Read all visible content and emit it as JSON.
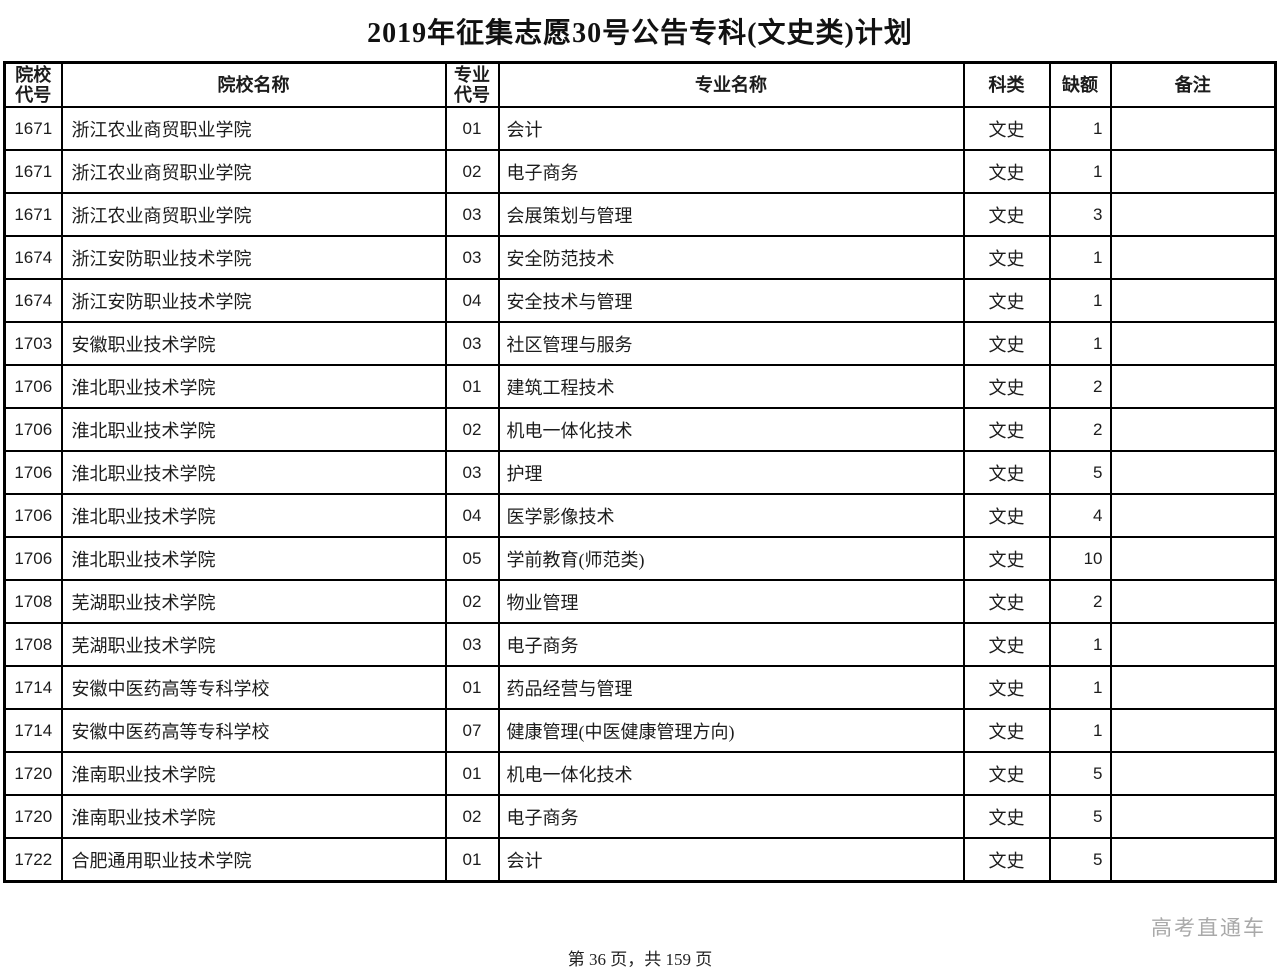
{
  "title": "2019年征集志愿30号公告专科(文史类)计划",
  "table": {
    "columns": [
      {
        "key": "college_code",
        "label": "院校代号"
      },
      {
        "key": "college_name",
        "label": "院校名称"
      },
      {
        "key": "major_code",
        "label": "专业代号"
      },
      {
        "key": "major_name",
        "label": "专业名称"
      },
      {
        "key": "category",
        "label": "科类"
      },
      {
        "key": "vacancy",
        "label": "缺额"
      },
      {
        "key": "remark",
        "label": "备注"
      }
    ],
    "rows": [
      [
        "1671",
        "浙江农业商贸职业学院",
        "01",
        "会计",
        "文史",
        "1",
        ""
      ],
      [
        "1671",
        "浙江农业商贸职业学院",
        "02",
        "电子商务",
        "文史",
        "1",
        ""
      ],
      [
        "1671",
        "浙江农业商贸职业学院",
        "03",
        "会展策划与管理",
        "文史",
        "3",
        ""
      ],
      [
        "1674",
        "浙江安防职业技术学院",
        "03",
        "安全防范技术",
        "文史",
        "1",
        ""
      ],
      [
        "1674",
        "浙江安防职业技术学院",
        "04",
        "安全技术与管理",
        "文史",
        "1",
        ""
      ],
      [
        "1703",
        "安徽职业技术学院",
        "03",
        "社区管理与服务",
        "文史",
        "1",
        ""
      ],
      [
        "1706",
        "淮北职业技术学院",
        "01",
        "建筑工程技术",
        "文史",
        "2",
        ""
      ],
      [
        "1706",
        "淮北职业技术学院",
        "02",
        "机电一体化技术",
        "文史",
        "2",
        ""
      ],
      [
        "1706",
        "淮北职业技术学院",
        "03",
        "护理",
        "文史",
        "5",
        ""
      ],
      [
        "1706",
        "淮北职业技术学院",
        "04",
        "医学影像技术",
        "文史",
        "4",
        ""
      ],
      [
        "1706",
        "淮北职业技术学院",
        "05",
        "学前教育(师范类)",
        "文史",
        "10",
        ""
      ],
      [
        "1708",
        "芜湖职业技术学院",
        "02",
        "物业管理",
        "文史",
        "2",
        ""
      ],
      [
        "1708",
        "芜湖职业技术学院",
        "03",
        "电子商务",
        "文史",
        "1",
        ""
      ],
      [
        "1714",
        "安徽中医药高等专科学校",
        "01",
        "药品经营与管理",
        "文史",
        "1",
        ""
      ],
      [
        "1714",
        "安徽中医药高等专科学校",
        "07",
        "健康管理(中医健康管理方向)",
        "文史",
        "1",
        ""
      ],
      [
        "1720",
        "淮南职业技术学院",
        "01",
        "机电一体化技术",
        "文史",
        "5",
        ""
      ],
      [
        "1720",
        "淮南职业技术学院",
        "02",
        "电子商务",
        "文史",
        "5",
        ""
      ],
      [
        "1722",
        "合肥通用职业技术学院",
        "01",
        "会计",
        "文史",
        "5",
        ""
      ]
    ]
  },
  "footer": {
    "page_info": "第 36 页，共 159 页",
    "watermark": "高考直通车"
  },
  "colors": {
    "background": "#ffffff",
    "border": "#000000",
    "text": "#1c1c1c",
    "watermark": "#a9a9a9"
  }
}
